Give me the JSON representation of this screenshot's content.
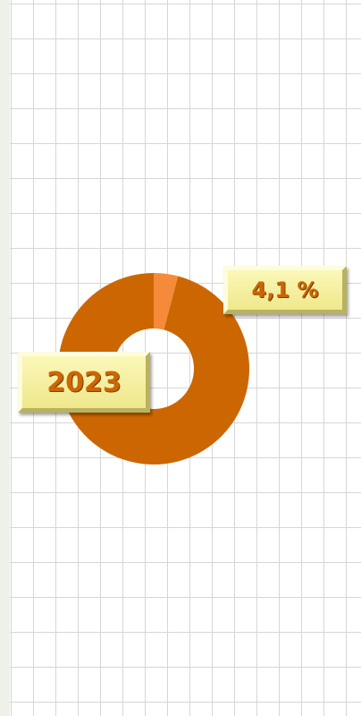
{
  "chart_data": {
    "type": "donut",
    "label": "2023",
    "values": [
      4.1,
      95.9
    ],
    "value_labels": [
      "4,1 %",
      null
    ],
    "colors": [
      "#f58a3a",
      "#cc6600"
    ]
  }
}
